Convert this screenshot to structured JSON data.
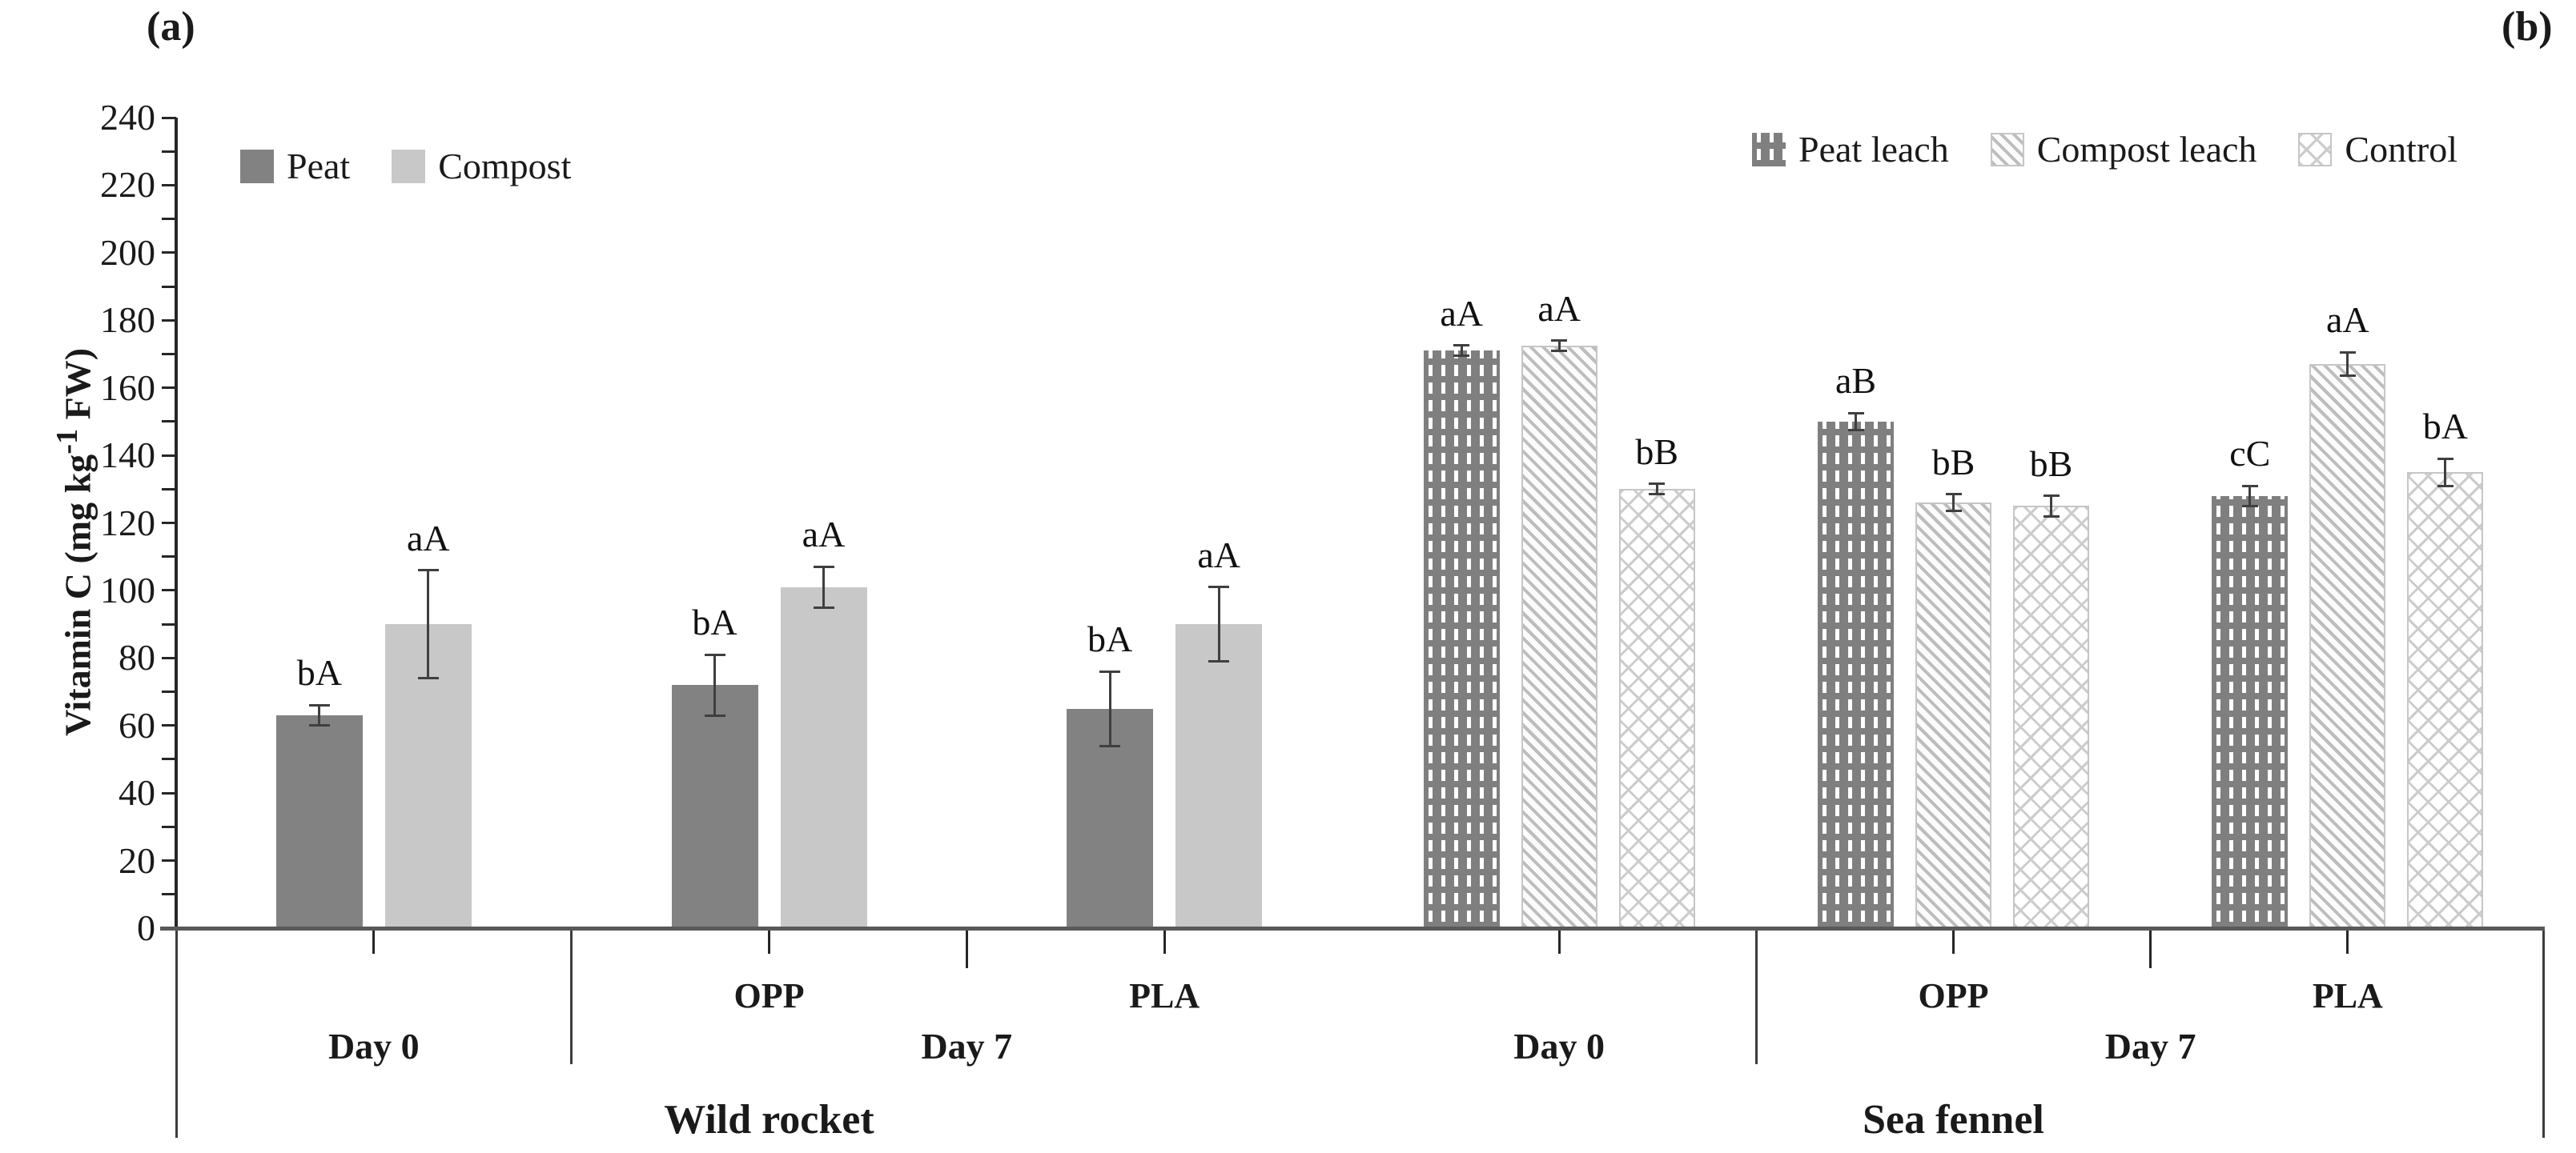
{
  "chart_data": {
    "type": "bar",
    "ylabel_parts": {
      "pre": "Vitamin C (mg kg",
      "sup": "-1",
      "post": " FW)"
    },
    "ylim": [
      0,
      240
    ],
    "ytick_step": 20,
    "yminor_step": 10,
    "grid": false,
    "colors": {
      "bar_dark": "#828282",
      "bar_light": "#c8c8c8",
      "axis_line": "#595959",
      "tick_text": "#1a1a1a",
      "error_bar": "#3f3f3f"
    },
    "panels": [
      {
        "corner_label": "(a)",
        "title": "Wild rocket",
        "legend_position": "top-left",
        "legend": [
          {
            "name": "Peat",
            "swatch": "solid-dark"
          },
          {
            "name": "Compost",
            "swatch": "solid-light"
          }
        ],
        "groups": [
          {
            "day": "Day 0",
            "sub": "",
            "bars": [
              {
                "series": "Peat",
                "value": 63,
                "err": 3,
                "sig": "bA"
              },
              {
                "series": "Compost",
                "value": 90,
                "err": 16,
                "sig": "aA"
              }
            ]
          },
          {
            "day": "Day 7",
            "sub": "OPP",
            "bars": [
              {
                "series": "Peat",
                "value": 72,
                "err": 9,
                "sig": "bA"
              },
              {
                "series": "Compost",
                "value": 101,
                "err": 6,
                "sig": "aA"
              }
            ]
          },
          {
            "day": "Day 7",
            "sub": "PLA",
            "bars": [
              {
                "series": "Peat",
                "value": 65,
                "err": 11,
                "sig": "bA"
              },
              {
                "series": "Compost",
                "value": 90,
                "err": 11,
                "sig": "aA"
              }
            ]
          }
        ]
      },
      {
        "corner_label": "(b)",
        "title": "Sea fennel",
        "legend_position": "top-right",
        "legend": [
          {
            "name": "Peat leach",
            "swatch": "dash-dark"
          },
          {
            "name": "Compost leach",
            "swatch": "diag-hatch"
          },
          {
            "name": "Control",
            "swatch": "cross-hatch"
          }
        ],
        "groups": [
          {
            "day": "Day 0",
            "sub": "",
            "bars": [
              {
                "series": "Peat leach",
                "value": 171,
                "err": 1.5,
                "sig": "aA"
              },
              {
                "series": "Compost leach",
                "value": 172.5,
                "err": 1.5,
                "sig": "aA"
              },
              {
                "series": "Control",
                "value": 130,
                "err": 1.5,
                "sig": "bB"
              }
            ]
          },
          {
            "day": "Day 7",
            "sub": "OPP",
            "bars": [
              {
                "series": "Peat leach",
                "value": 150,
                "err": 2.5,
                "sig": "aB"
              },
              {
                "series": "Compost leach",
                "value": 126,
                "err": 2.5,
                "sig": "bB"
              },
              {
                "series": "Control",
                "value": 125,
                "err": 3,
                "sig": "bB"
              }
            ]
          },
          {
            "day": "Day 7",
            "sub": "PLA",
            "bars": [
              {
                "series": "Peat leach",
                "value": 128,
                "err": 3,
                "sig": "cC"
              },
              {
                "series": "Compost leach",
                "value": 167,
                "err": 3.5,
                "sig": "aA"
              },
              {
                "series": "Control",
                "value": 135,
                "err": 4,
                "sig": "bA"
              }
            ]
          }
        ]
      }
    ]
  }
}
